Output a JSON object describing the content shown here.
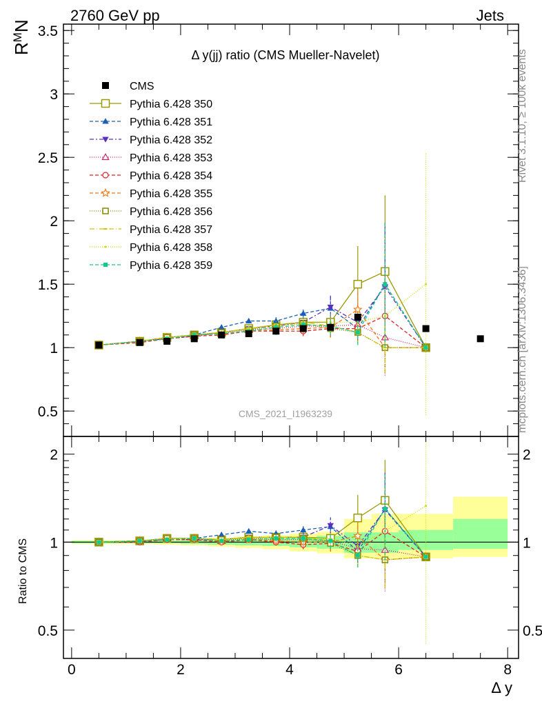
{
  "header": {
    "left": "2760 GeV pp",
    "right": "Jets"
  },
  "title_prefix": "Δ",
  "title_main": " y(jj) ratio (CMS Mueller-Navelet)",
  "analysis_id": "CMS_2021_I1963239",
  "side_text_top": "Rivet 3.1.10, ≥ 100k events",
  "side_text_bottom": "mcplots.cern.ch [arXiv:1306.3436]",
  "ylabel_top": "R",
  "ylabel_top_sup": "M",
  "ylabel_top_tail": "N",
  "ylabel_bottom": "Ratio to CMS",
  "xlabel": "Δ y",
  "colors": {
    "axis": "#000000",
    "band_inner": "#99ff99",
    "band_outer": "#ffff99"
  },
  "chart_data": [
    {
      "type": "line",
      "panel": "main",
      "xlim": [
        -0.15,
        8.2
      ],
      "ylim": [
        0.3,
        3.55
      ],
      "xticks": [
        0,
        2,
        4,
        6,
        8
      ],
      "yticks": [
        0.5,
        1,
        1.5,
        2,
        2.5,
        3,
        3.5
      ],
      "ytick_labels": [
        "0.5",
        "1",
        "1.5",
        "2",
        "2.5",
        "3",
        "3.5"
      ],
      "x": [
        0.5,
        1.25,
        1.75,
        2.25,
        2.75,
        3.25,
        3.75,
        4.25,
        4.75,
        5.25,
        5.75,
        6.5
      ],
      "data": {
        "name": "CMS",
        "x": [
          0.5,
          1.25,
          1.75,
          2.25,
          2.75,
          3.25,
          3.75,
          4.25,
          4.75,
          5.25,
          6.5,
          7.5
        ],
        "values": [
          1.02,
          1.04,
          1.05,
          1.07,
          1.1,
          1.11,
          1.13,
          1.15,
          1.16,
          1.24,
          1.15,
          1.07
        ]
      },
      "series": [
        {
          "name": "Pythia 6.428 350",
          "color": "#999900",
          "dash": "",
          "marker": "square-open",
          "size": 11,
          "values": [
            1.02,
            1.05,
            1.08,
            1.1,
            1.12,
            1.15,
            1.18,
            1.2,
            1.2,
            1.5,
            1.6,
            1.0
          ],
          "errors": [
            0.01,
            0.01,
            0.01,
            0.01,
            0.015,
            0.02,
            0.03,
            0.04,
            0.07,
            0.3,
            0.6,
            0
          ]
        },
        {
          "name": "Pythia 6.428 351",
          "color": "#1a5fb4",
          "dash": "5,3",
          "marker": "triangle-up",
          "size": 8,
          "values": [
            1.02,
            1.05,
            1.08,
            1.1,
            1.16,
            1.21,
            1.21,
            1.27,
            1.31,
            1.15,
            1.5,
            1.0
          ],
          "errors": [
            0.01,
            0.01,
            0.01,
            0.01,
            0.015,
            0.02,
            0.03,
            0.04,
            0.1,
            0.1,
            0.5,
            0
          ]
        },
        {
          "name": "Pythia 6.428 352",
          "color": "#5a2ec4",
          "dash": "6,3,2,3",
          "marker": "triangle-down",
          "size": 8,
          "values": [
            1.02,
            1.05,
            1.07,
            1.09,
            1.12,
            1.15,
            1.17,
            1.2,
            1.32,
            1.2,
            1.48,
            1.0
          ],
          "errors": [
            0.01,
            0.01,
            0.01,
            0.01,
            0.015,
            0.02,
            0.03,
            0.04,
            0.1,
            0.12,
            0.5,
            0
          ]
        },
        {
          "name": "Pythia 6.428 353",
          "color": "#cc2266",
          "dash": "1,2",
          "marker": "triangle-open",
          "size": 8,
          "values": [
            1.02,
            1.05,
            1.08,
            1.1,
            1.11,
            1.14,
            1.15,
            1.17,
            1.17,
            1.18,
            1.08,
            1.0
          ],
          "errors": [
            0.01,
            0.01,
            0.01,
            0.01,
            0.015,
            0.02,
            0.03,
            0.04,
            0.07,
            0.1,
            0.3,
            0
          ]
        },
        {
          "name": "Pythia 6.428 354",
          "color": "#dd2222",
          "dash": "5,3",
          "marker": "circle-open",
          "size": 8,
          "values": [
            1.02,
            1.04,
            1.07,
            1.09,
            1.1,
            1.13,
            1.13,
            1.13,
            1.15,
            1.15,
            1.25,
            1.0
          ],
          "errors": [
            0.01,
            0.01,
            0.01,
            0.01,
            0.015,
            0.02,
            0.03,
            0.04,
            0.07,
            0.1,
            0.3,
            0
          ]
        },
        {
          "name": "Pythia 6.428 355",
          "color": "#ee7711",
          "dash": "5,3",
          "marker": "star-open",
          "size": 9,
          "values": [
            1.02,
            1.05,
            1.08,
            1.1,
            1.11,
            1.13,
            1.14,
            1.15,
            1.16,
            1.3,
            1.0,
            1.0
          ],
          "errors": [
            0.01,
            0.01,
            0.01,
            0.01,
            0.015,
            0.02,
            0.03,
            0.04,
            0.08,
            0.15,
            0.2,
            0
          ]
        },
        {
          "name": "Pythia 6.428 356",
          "color": "#888800",
          "dash": "1,2",
          "marker": "square-open",
          "size": 8,
          "values": [
            1.02,
            1.05,
            1.08,
            1.1,
            1.12,
            1.14,
            1.17,
            1.19,
            1.15,
            1.12,
            1.0,
            1.0
          ],
          "errors": [
            0.01,
            0.01,
            0.01,
            0.01,
            0.015,
            0.02,
            0.03,
            0.04,
            0.07,
            0.1,
            0.2,
            0
          ]
        },
        {
          "name": "Pythia 6.428 357",
          "color": "#d4c400",
          "dash": "7,3,1,3",
          "marker": "tick",
          "size": 5,
          "values": [
            1.02,
            1.05,
            1.08,
            1.1,
            1.12,
            1.15,
            1.18,
            1.2,
            1.17,
            1.12,
            1.0,
            1.0
          ],
          "errors": [
            0.01,
            0.01,
            0.01,
            0.01,
            0.015,
            0.02,
            0.03,
            0.04,
            0.07,
            0.1,
            0.2,
            0
          ]
        },
        {
          "name": "Pythia 6.428 358",
          "color": "#c8e000",
          "dash": "1,2",
          "marker": "dot",
          "size": 3,
          "values": [
            1.02,
            1.05,
            1.08,
            1.1,
            1.12,
            1.15,
            1.17,
            1.19,
            1.2,
            1.2,
            1.25,
            1.5
          ],
          "errors": [
            0.01,
            0.01,
            0.01,
            0.01,
            0.015,
            0.02,
            0.03,
            0.04,
            0.07,
            0.1,
            0.3,
            1.03
          ]
        },
        {
          "name": "Pythia 6.428 359",
          "color": "#11cc88",
          "dash": "5,3",
          "marker": "square-filled",
          "size": 6,
          "values": [
            1.02,
            1.05,
            1.07,
            1.1,
            1.11,
            1.13,
            1.16,
            1.18,
            1.17,
            1.12,
            1.5,
            1.0
          ],
          "errors": [
            0.01,
            0.01,
            0.01,
            0.01,
            0.015,
            0.02,
            0.03,
            0.04,
            0.07,
            0.1,
            0.5,
            0
          ]
        }
      ]
    },
    {
      "type": "line",
      "panel": "ratio",
      "ylabel": "Ratio to CMS",
      "xlabel": "Δ y",
      "scale": "log",
      "xlim": [
        -0.15,
        8.2
      ],
      "ylim": [
        0.4,
        2.3
      ],
      "yticks": [
        0.5,
        1,
        2
      ],
      "ytick_labels": [
        "0.5",
        "1",
        "2"
      ],
      "xtick_labels": [
        "0",
        "2",
        "4",
        "6",
        "8"
      ],
      "band": {
        "edges": [
          0,
          1,
          1.5,
          2,
          2.5,
          3,
          3.5,
          4,
          4.5,
          5,
          5.5,
          6,
          7,
          8
        ],
        "inner_low": [
          0.99,
          0.99,
          0.99,
          0.985,
          0.98,
          0.975,
          0.97,
          0.96,
          0.95,
          0.92,
          0.92,
          0.94,
          0.95
        ],
        "inner_high": [
          1.01,
          1.01,
          1.01,
          1.015,
          1.02,
          1.025,
          1.03,
          1.04,
          1.05,
          1.08,
          1.08,
          1.1,
          1.2
        ],
        "outer_low": [
          0.985,
          0.985,
          0.98,
          0.975,
          0.965,
          0.955,
          0.945,
          0.93,
          0.915,
          0.88,
          0.88,
          0.88,
          0.89
        ],
        "outer_high": [
          1.015,
          1.015,
          1.02,
          1.025,
          1.035,
          1.045,
          1.055,
          1.07,
          1.085,
          1.2,
          1.25,
          1.25,
          1.43
        ]
      },
      "series": [
        {
          "name": "Pythia 6.428 350",
          "values": [
            1.0,
            1.01,
            1.03,
            1.03,
            1.02,
            1.04,
            1.04,
            1.04,
            1.03,
            1.21,
            1.39,
            0.89
          ]
        },
        {
          "name": "Pythia 6.428 351",
          "values": [
            1.0,
            1.01,
            1.03,
            1.03,
            1.06,
            1.09,
            1.07,
            1.1,
            1.13,
            0.93,
            1.3,
            0.89
          ]
        },
        {
          "name": "Pythia 6.428 352",
          "values": [
            1.0,
            1.01,
            1.02,
            1.02,
            1.02,
            1.04,
            1.04,
            1.04,
            1.14,
            0.97,
            1.29,
            0.89
          ]
        },
        {
          "name": "Pythia 6.428 353",
          "values": [
            1.0,
            1.01,
            1.03,
            1.03,
            1.01,
            1.03,
            1.02,
            1.02,
            1.01,
            0.95,
            0.94,
            0.89
          ]
        },
        {
          "name": "Pythia 6.428 354",
          "values": [
            1.0,
            1.0,
            1.02,
            1.02,
            1.0,
            1.02,
            1.0,
            0.98,
            0.99,
            0.93,
            1.09,
            0.89
          ]
        },
        {
          "name": "Pythia 6.428 355",
          "values": [
            1.0,
            1.01,
            1.03,
            1.03,
            1.01,
            1.02,
            1.01,
            1.0,
            1.0,
            1.05,
            0.87,
            0.89
          ]
        },
        {
          "name": "Pythia 6.428 356",
          "values": [
            1.0,
            1.01,
            1.03,
            1.03,
            1.02,
            1.03,
            1.04,
            1.03,
            0.99,
            0.9,
            0.87,
            0.89
          ]
        },
        {
          "name": "Pythia 6.428 357",
          "values": [
            1.0,
            1.01,
            1.03,
            1.03,
            1.02,
            1.04,
            1.04,
            1.04,
            1.01,
            0.9,
            0.87,
            0.89
          ]
        },
        {
          "name": "Pythia 6.428 358",
          "values": [
            1.0,
            1.01,
            1.03,
            1.03,
            1.02,
            1.04,
            1.04,
            1.03,
            1.03,
            0.97,
            1.09,
            1.33
          ]
        },
        {
          "name": "Pythia 6.428 359",
          "values": [
            1.0,
            1.01,
            1.02,
            1.03,
            1.01,
            1.02,
            1.03,
            1.03,
            1.01,
            0.9,
            1.3,
            0.89
          ]
        }
      ]
    }
  ]
}
